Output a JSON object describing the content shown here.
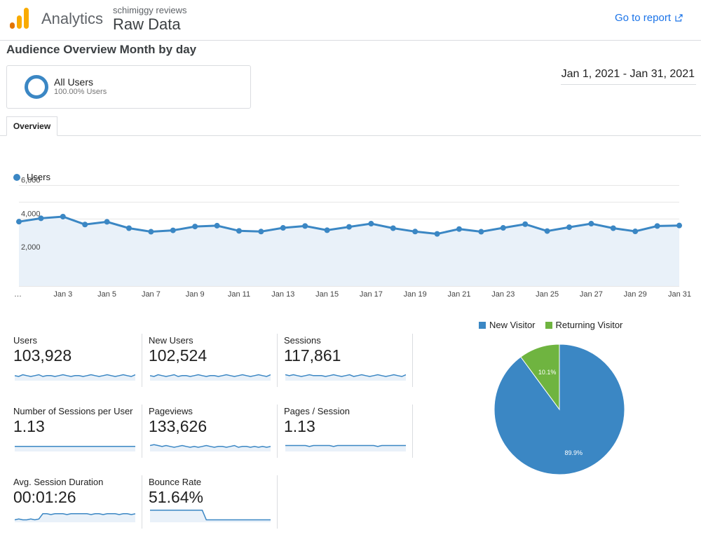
{
  "header": {
    "brand": "Analytics",
    "property": "schimiggy reviews",
    "view": "Raw Data",
    "go_to_report": "Go to report"
  },
  "report_title": "Audience Overview Month by day",
  "segment": {
    "name": "All Users",
    "pct": "100.00% Users"
  },
  "date_range": "Jan 1, 2021 - Jan 31, 2021",
  "tabs": [
    {
      "label": "Overview"
    }
  ],
  "colors": {
    "series": "#3b87c4",
    "series_fill": "#e9f1f9",
    "new_visitor": "#3b87c4",
    "returning_visitor": "#6fb440",
    "link": "#1a73e8"
  },
  "chart_data": [
    {
      "type": "line",
      "legend": "Users",
      "legend_position": "top-left",
      "x_tick_labels": [
        "…",
        "Jan 3",
        "Jan 5",
        "Jan 7",
        "Jan 9",
        "Jan 11",
        "Jan 13",
        "Jan 15",
        "Jan 17",
        "Jan 19",
        "Jan 21",
        "Jan 23",
        "Jan 25",
        "Jan 27",
        "Jan 29",
        "Jan 31"
      ],
      "y_tick_labels": [
        "6,000",
        "4,000",
        "2,000"
      ],
      "y_ticks": [
        6000,
        4000,
        2000
      ],
      "ylim": [
        0,
        6000
      ],
      "grid": true,
      "x": [
        "Jan 1",
        "Jan 2",
        "Jan 3",
        "Jan 4",
        "Jan 5",
        "Jan 6",
        "Jan 7",
        "Jan 8",
        "Jan 9",
        "Jan 10",
        "Jan 11",
        "Jan 12",
        "Jan 13",
        "Jan 14",
        "Jan 15",
        "Jan 16",
        "Jan 17",
        "Jan 18",
        "Jan 19",
        "Jan 20",
        "Jan 21",
        "Jan 22",
        "Jan 23",
        "Jan 24",
        "Jan 25",
        "Jan 26",
        "Jan 27",
        "Jan 28",
        "Jan 29",
        "Jan 30",
        "Jan 31"
      ],
      "series": [
        {
          "name": "Users",
          "values": [
            3840,
            4040,
            4140,
            3670,
            3830,
            3450,
            3240,
            3320,
            3550,
            3600,
            3290,
            3250,
            3470,
            3580,
            3330,
            3530,
            3720,
            3450,
            3250,
            3110,
            3400,
            3240,
            3470,
            3690,
            3280,
            3510,
            3720,
            3450,
            3260,
            3580,
            3610
          ]
        }
      ]
    },
    {
      "type": "pie",
      "legend": [
        "New Visitor",
        "Returning Visitor"
      ],
      "legend_position": "top",
      "labels": [
        "89.9%",
        "10.1%"
      ],
      "values": [
        89.9,
        10.1
      ]
    }
  ],
  "metrics": [
    {
      "label": "Users",
      "value": "103,928",
      "spark": [
        5,
        4,
        6,
        5,
        4,
        5,
        6,
        4,
        5,
        5,
        4,
        5,
        6,
        5,
        4,
        5,
        5,
        4,
        5,
        6,
        5,
        4,
        5,
        6,
        5,
        4,
        5,
        6,
        5,
        4,
        6
      ]
    },
    {
      "label": "New Users",
      "value": "102,524",
      "spark": [
        5,
        4,
        6,
        5,
        4,
        5,
        6,
        4,
        5,
        5,
        4,
        5,
        6,
        5,
        4,
        5,
        5,
        4,
        5,
        6,
        5,
        4,
        5,
        6,
        5,
        4,
        5,
        6,
        5,
        4,
        6
      ]
    },
    {
      "label": "Sessions",
      "value": "117,861",
      "spark": [
        6,
        5,
        6,
        5,
        4,
        5,
        6,
        5,
        5,
        5,
        4,
        5,
        6,
        5,
        4,
        5,
        6,
        4,
        5,
        6,
        5,
        4,
        5,
        6,
        5,
        4,
        5,
        6,
        5,
        4,
        6
      ]
    },
    {
      "label": "Number of Sessions per User",
      "value": "1.13",
      "spark": [
        5,
        5,
        5,
        5,
        5,
        5,
        5,
        5,
        5,
        5,
        5,
        5,
        5,
        5,
        5,
        5,
        5,
        5,
        5,
        5,
        5,
        5,
        5,
        5,
        5,
        5,
        5,
        5,
        5,
        5,
        5
      ]
    },
    {
      "label": "Pageviews",
      "value": "133,626",
      "spark": [
        6,
        7,
        6,
        5,
        6,
        5,
        4,
        5,
        6,
        5,
        4,
        5,
        4,
        5,
        6,
        5,
        4,
        5,
        5,
        4,
        5,
        6,
        4,
        5,
        5,
        4,
        5,
        4,
        5,
        4,
        5
      ]
    },
    {
      "label": "Pages / Session",
      "value": "1.13",
      "spark": [
        6,
        6,
        6,
        6,
        6,
        6,
        5,
        6,
        6,
        6,
        6,
        6,
        5,
        6,
        6,
        6,
        6,
        6,
        6,
        6,
        6,
        6,
        6,
        5,
        6,
        6,
        6,
        6,
        6,
        6,
        6
      ]
    },
    {
      "label": "Avg. Session Duration",
      "value": "00:01:26",
      "spark": [
        2,
        3,
        2,
        2,
        3,
        2,
        3,
        9,
        9,
        8,
        9,
        9,
        9,
        8,
        9,
        9,
        9,
        9,
        9,
        8,
        9,
        9,
        8,
        9,
        9,
        9,
        8,
        9,
        9,
        8,
        9
      ]
    },
    {
      "label": "Bounce Rate",
      "value": "51.64%",
      "spark": [
        13,
        13,
        13,
        13,
        13,
        13,
        13,
        13,
        13,
        13,
        13,
        13,
        13,
        13,
        2,
        2,
        2,
        2,
        2,
        2,
        2,
        2,
        2,
        2,
        2,
        2,
        2,
        2,
        2,
        2,
        2
      ]
    }
  ]
}
